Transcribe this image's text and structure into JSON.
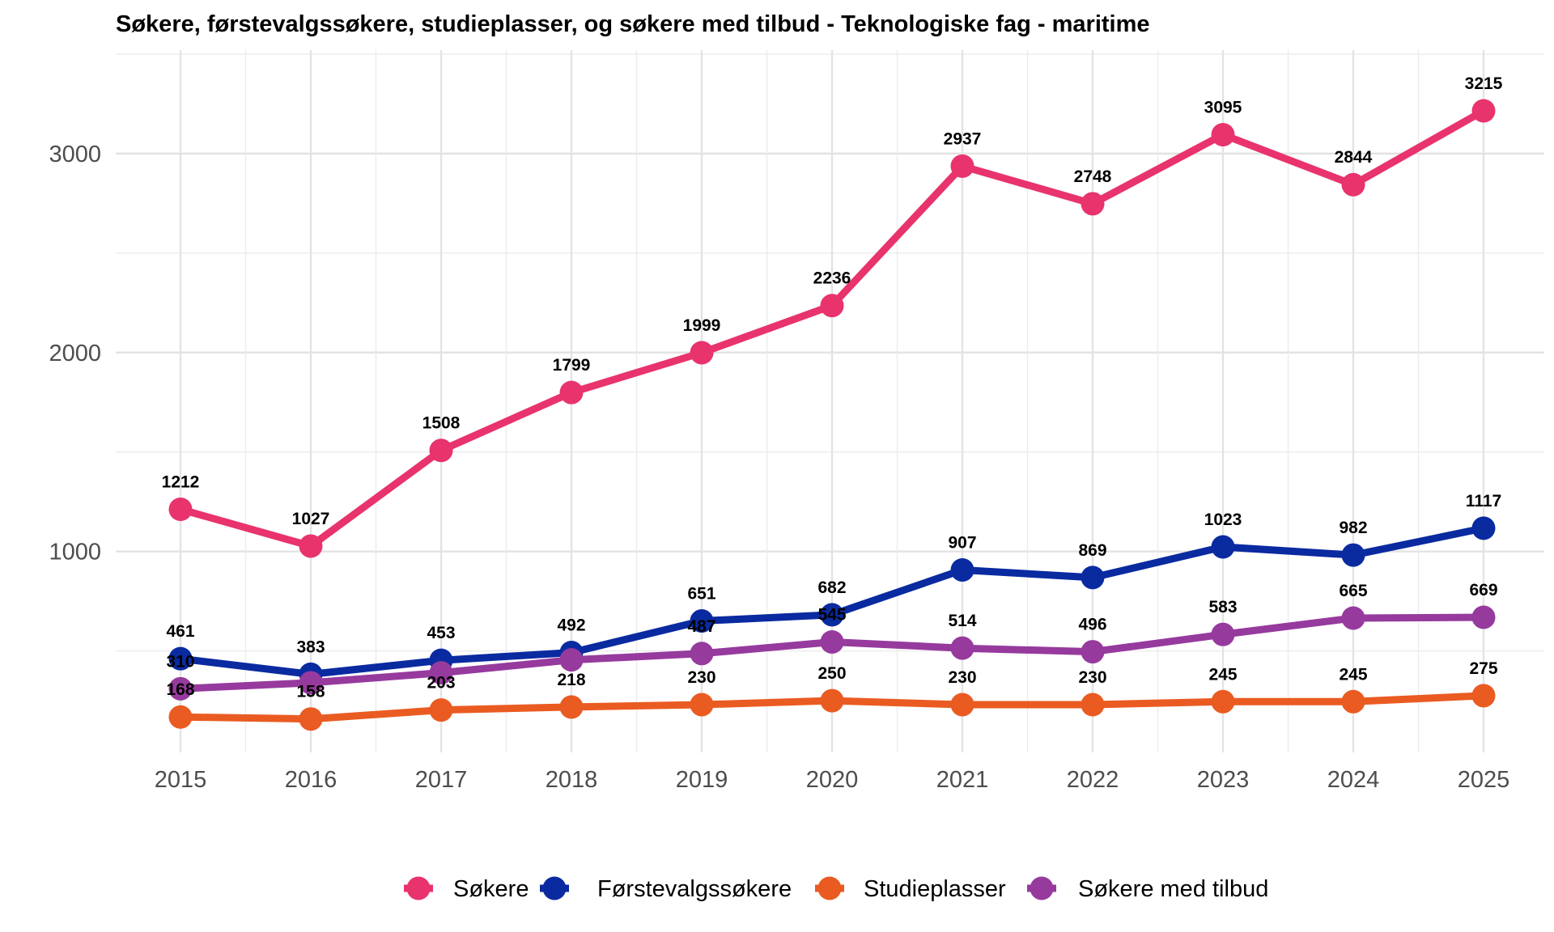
{
  "chart_data": {
    "type": "line",
    "title": "Søkere, førstevalgssøkere, studieplasser, og søkere med tilbud - Teknologiske fag - maritime",
    "xlabel": "",
    "ylabel": "",
    "x": [
      2015,
      2016,
      2017,
      2018,
      2019,
      2020,
      2021,
      2022,
      2023,
      2024,
      2025
    ],
    "ylim": [
      -10,
      3520
    ],
    "yticks": [
      1000,
      2000,
      3000
    ],
    "grid": true,
    "legend_position": "bottom",
    "series": [
      {
        "name": "Søkere",
        "color": "#e8336d",
        "values": [
          1212,
          1027,
          1508,
          1799,
          1999,
          2236,
          2937,
          2748,
          3095,
          2844,
          3215
        ]
      },
      {
        "name": "Førstevalgssøkere",
        "color": "#0a2aa0",
        "values": [
          461,
          383,
          453,
          492,
          651,
          682,
          907,
          869,
          1023,
          982,
          1117
        ]
      },
      {
        "name": "Studieplasser",
        "color": "#ea5b22",
        "values": [
          168,
          158,
          203,
          218,
          230,
          250,
          230,
          230,
          245,
          245,
          275
        ]
      },
      {
        "name": "Søkere med tilbud",
        "color": "#963a9e",
        "values": [
          310,
          null,
          null,
          null,
          487,
          545,
          514,
          496,
          583,
          665,
          669
        ]
      }
    ],
    "line_values": {
      "Søkere med tilbud": [
        310,
        340,
        390,
        455,
        487,
        545,
        514,
        496,
        583,
        665,
        669
      ]
    }
  }
}
